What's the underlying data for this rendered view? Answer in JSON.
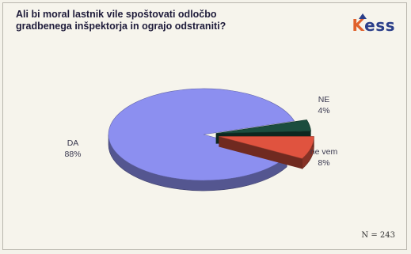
{
  "title_lines": [
    "Ali bi moral lastnik vile spoštovati odločbo",
    "gradbenega inšpektorja in ograjo odstraniti?"
  ],
  "logo": {
    "k": "K",
    "rest": "ess"
  },
  "sample_size": "N = 243",
  "colors": {
    "DA": "#8c8ff0",
    "NE": "#1b4d3e",
    "ne vem": "#e0533f"
  },
  "chart_data": {
    "type": "pie",
    "title": "Ali bi moral lastnik vile spoštovati odločbo gradbenega inšpektorja in ograjo odstraniti?",
    "slices": [
      {
        "label": "DA",
        "value": 88,
        "display": "88%"
      },
      {
        "label": "NE",
        "value": 4,
        "display": "4%"
      },
      {
        "label": "ne vem",
        "value": 8,
        "display": "8%"
      }
    ]
  }
}
